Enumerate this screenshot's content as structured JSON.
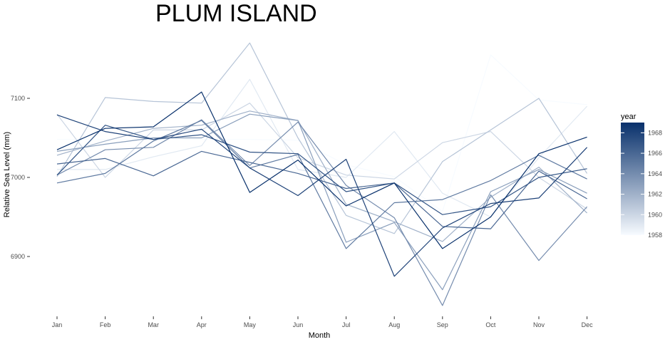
{
  "chart_data": {
    "type": "line",
    "title": "PLUM ISLAND",
    "xlabel": "Month",
    "ylabel": "Relative Sea Level (mm)",
    "categories": [
      "Jan",
      "Feb",
      "Mar",
      "Apr",
      "May",
      "Jun",
      "Jul",
      "Aug",
      "Sep",
      "Oct",
      "Nov",
      "Dec"
    ],
    "yticks": [
      6900,
      7000,
      7100
    ],
    "ylim": [
      6822,
      7182
    ],
    "grid": false,
    "legend": {
      "title": "year",
      "position": "right",
      "ticks": [
        1958,
        1960,
        1962,
        1964,
        1966,
        1968
      ],
      "range": [
        1958,
        1969
      ],
      "color_low": "#f7fbff",
      "color_high": "#08306b"
    },
    "series": [
      {
        "year": 1958,
        "values": [
          7048,
          7048,
          7048,
          7048,
          7048,
          7047,
          7016,
          7001,
          6957,
          7155,
          7098,
          7092
        ]
      },
      {
        "year": 1959,
        "values": [
          7010,
          7010,
          7026,
          7040,
          7124,
          7010,
          7000,
          7058,
          6980,
          6950,
          7025,
          7090
        ]
      },
      {
        "year": 1960,
        "values": [
          7080,
          7000,
          7060,
          7060,
          7094,
          7025,
          7003,
          6998,
          7044,
          7058,
          7000,
          6960
        ]
      },
      {
        "year": 1961,
        "values": [
          7001,
          7101,
          7096,
          7094,
          7170,
          7050,
          6952,
          6929,
          7020,
          7060,
          7100,
          7005
        ]
      },
      {
        "year": 1962,
        "values": [
          7028,
          7046,
          7062,
          7066,
          7084,
          7072,
          6966,
          6944,
          6919,
          6975,
          7013,
          6955
        ]
      },
      {
        "year": 1963,
        "values": [
          7033,
          7042,
          7050,
          7050,
          7080,
          7072,
          6918,
          6943,
          6858,
          6982,
          7010,
          6980
        ]
      },
      {
        "year": 1964,
        "values": [
          7003,
          7035,
          7038,
          7073,
          7015,
          7070,
          6990,
          6949,
          6838,
          6978,
          6895,
          6963
        ]
      },
      {
        "year": 1965,
        "values": [
          6993,
          7005,
          7046,
          7072,
          7012,
          7029,
          6910,
          6968,
          6972,
          6996,
          7028,
          6998
        ]
      },
      {
        "year": 1966,
        "values": [
          7017,
          7024,
          7002,
          7033,
          7019,
          7005,
          6986,
          6993,
          6938,
          6935,
          7008,
          6973
        ]
      },
      {
        "year": 1967,
        "values": [
          7003,
          7066,
          7048,
          7054,
          7032,
          7030,
          6982,
          6993,
          6953,
          6963,
          7000,
          7011
        ]
      },
      {
        "year": 1968,
        "values": [
          7079,
          7058,
          7048,
          7061,
          7012,
          6977,
          7023,
          6875,
          6936,
          6967,
          6974,
          7038
        ]
      },
      {
        "year": 1969,
        "values": [
          7035,
          7062,
          7064,
          7108,
          6981,
          7022,
          6964,
          6993,
          6910,
          6950,
          7030,
          7051
        ]
      }
    ]
  }
}
